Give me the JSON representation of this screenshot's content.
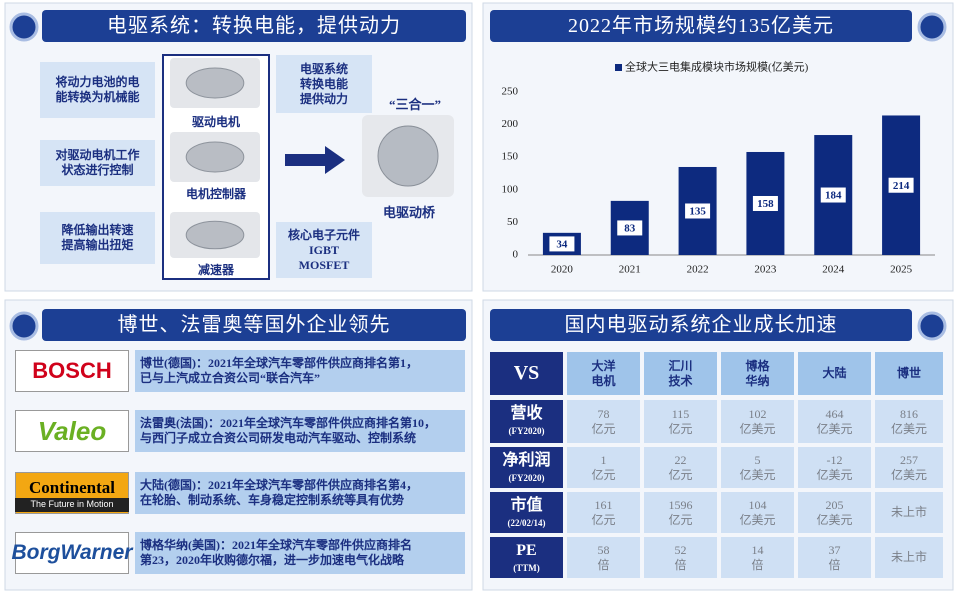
{
  "drive_system": {
    "title": "电驱系统：转换电能，提供动力",
    "functions": [
      "将动力电池的电\n能转换为机械能",
      "对驱动电机工作\n状态进行控制",
      "降低输出转速\n提高输出扭矩"
    ],
    "components": [
      "驱动电机",
      "电机控制器",
      "减速器"
    ],
    "role": "电驱系统\n转换电能\n提供动力",
    "core": "核心电子元件\nIGBT\nMOSFET",
    "integration": "“三合一”",
    "product": "电驱动桥"
  },
  "chart_data": {
    "type": "bar",
    "title": "2022年市场规模约135亿美元",
    "categories": [
      "2020",
      "2021",
      "2022",
      "2023",
      "2024",
      "2025"
    ],
    "series": [
      {
        "name": "全球大三电集成模块市场规模(亿美元)",
        "color": "#0d2a7f",
        "values": [
          34,
          83,
          135,
          158,
          184,
          214
        ]
      }
    ],
    "ylim": [
      0,
      250
    ],
    "yticks": [
      0,
      50,
      100,
      150,
      200,
      250
    ],
    "grid": false,
    "legend": "top"
  },
  "foreign_leaders": {
    "title": "博世、法雷奥等国外企业领先",
    "companies": [
      {
        "logo": "BOSCH",
        "description": "博世(德国)：2021年全球汽车零部件供应商排名第1，\n已与上汽成立合资公司“联合汽车”"
      },
      {
        "logo": "Valeo",
        "description": "法雷奥(法国)：2021年全球汽车零部件供应商排名第10，\n与西门子成立合资公司研发电动汽车驱动、控制系统"
      },
      {
        "logo": "Continental",
        "tagline": "The Future in Motion",
        "description": "大陆(德国)：2021年全球汽车零部件供应商排名第4，\n在轮胎、制动系统、车身稳定控制系统等具有优势"
      },
      {
        "logo": "BorgWarner",
        "description": "博格华纳(美国)：2021年全球汽车零部件供应商排名\n第23，2020年收购德尔福，进一步加速电气化战略"
      }
    ]
  },
  "domestic_table": {
    "title": "国内电驱动系统企业成长加速",
    "header": [
      "VS",
      "大洋\n电机",
      "汇川\n技术",
      "博格\n华纳",
      "大陆",
      "博世"
    ],
    "rows": [
      {
        "label": "营收",
        "sub": "(FY2020)",
        "cells": [
          "78\n亿元",
          "115\n亿元",
          "102\n亿美元",
          "464\n亿美元",
          "816\n亿美元"
        ]
      },
      {
        "label": "净利润",
        "sub": "(FY2020)",
        "cells": [
          "1\n亿元",
          "22\n亿元",
          "5\n亿美元",
          "-12\n亿美元",
          "257\n亿美元"
        ]
      },
      {
        "label": "市值",
        "sub": "(22/02/14)",
        "cells": [
          "161\n亿元",
          "1596\n亿元",
          "104\n亿美元",
          "205\n亿美元",
          "未上市"
        ]
      },
      {
        "label": "PE",
        "sub": "(TTM)",
        "cells": [
          "58\n倍",
          "52\n倍",
          "14\n倍",
          "37\n倍",
          "未上市"
        ]
      }
    ]
  }
}
